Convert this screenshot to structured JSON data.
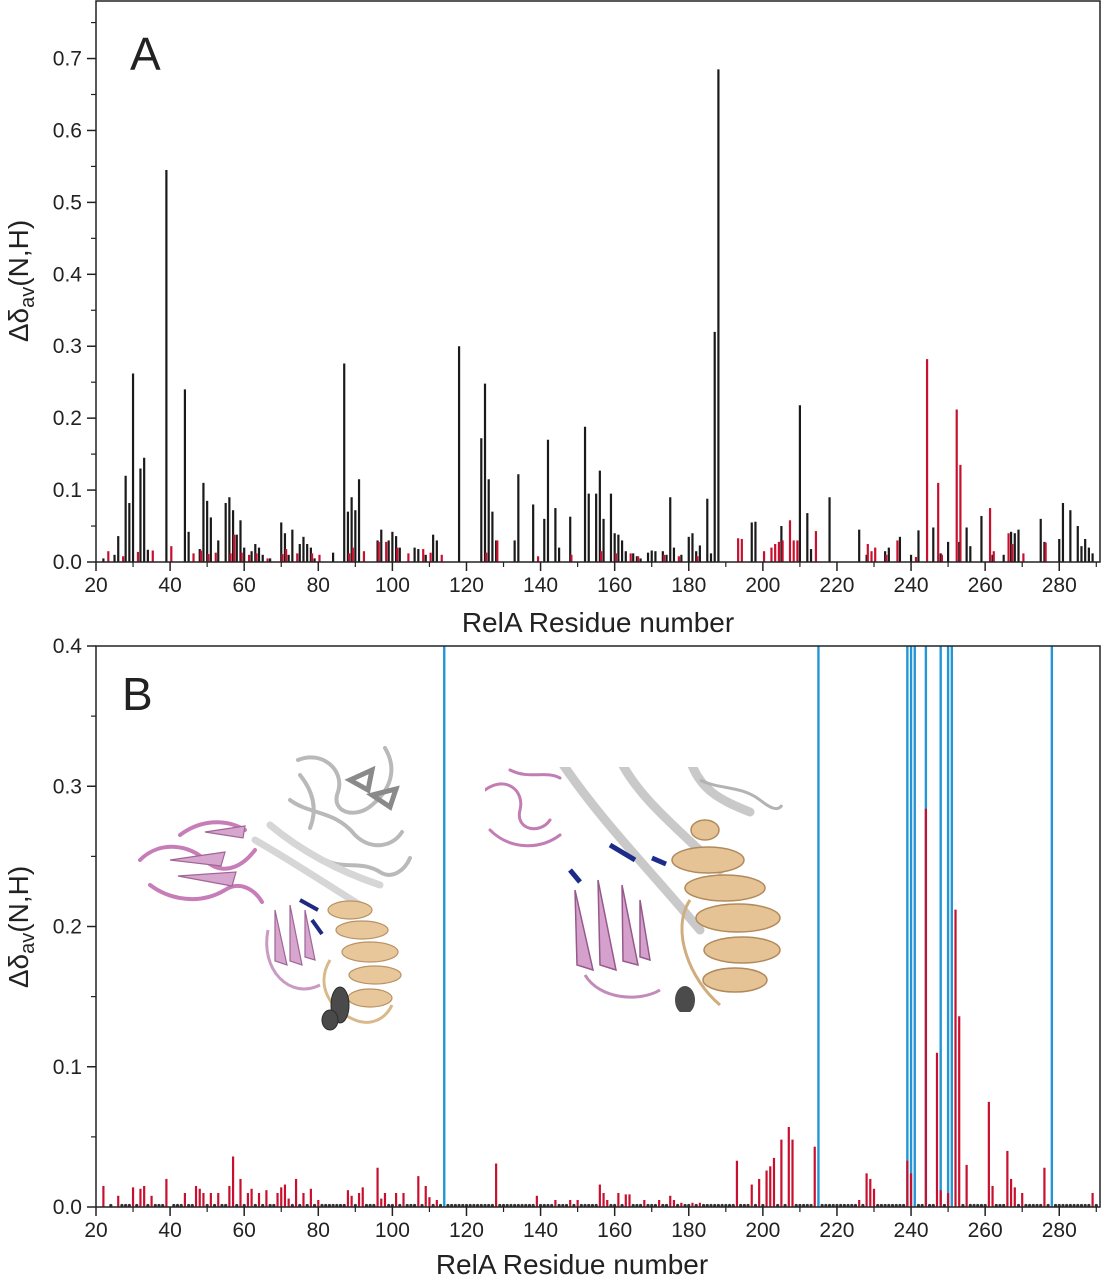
{
  "chart_data": [
    {
      "type": "bar",
      "panel_label": "A",
      "xlabel": "RelA Residue number",
      "ylabel": "Δδ_av(N,H)",
      "ylabel_parts": {
        "main": "Δδ",
        "sub": "av",
        "suffix": "(N,H)"
      },
      "xlim": [
        20,
        291
      ],
      "ylim": [
        0,
        0.78
      ],
      "xticks": [
        20,
        40,
        60,
        80,
        100,
        120,
        140,
        160,
        180,
        200,
        220,
        240,
        260,
        280
      ],
      "yticks": [
        "0.0",
        "0.1",
        "0.2",
        "0.3",
        "0.4",
        "0.5",
        "0.6",
        "0.7"
      ],
      "grid": false,
      "colors": {
        "series_1": "#1a1a1a",
        "series_2": "#c8102e"
      },
      "series": [
        {
          "color": "#1a1a1a",
          "x": [
            22,
            25,
            26,
            28,
            29,
            30,
            32,
            33,
            34,
            39,
            44,
            45,
            48,
            49,
            50,
            51,
            53,
            55,
            56,
            57,
            58,
            59,
            60,
            62,
            63,
            64,
            65,
            67,
            70,
            71,
            72,
            73,
            75,
            76,
            77,
            78,
            79,
            84,
            87,
            88,
            89,
            90,
            91,
            96,
            97,
            99,
            100,
            101,
            102,
            106,
            107,
            109,
            111,
            112,
            118,
            124,
            125,
            126,
            127,
            128,
            133,
            134,
            138,
            141,
            142,
            144,
            145,
            148,
            152,
            153,
            155,
            156,
            157,
            159,
            160,
            161,
            162,
            163,
            165,
            166,
            167,
            169,
            170,
            171,
            173,
            174,
            175,
            176,
            178,
            180,
            181,
            182,
            183,
            185,
            186,
            187,
            188,
            197,
            198,
            205,
            210,
            212,
            213,
            218,
            226,
            228,
            233,
            234,
            237,
            240,
            242,
            246,
            248,
            250,
            253,
            255,
            256,
            259,
            262,
            265,
            267,
            268,
            269,
            275,
            276,
            280,
            281,
            283,
            285,
            286,
            287,
            288,
            289
          ],
          "values": [
            0.005,
            0.01,
            0.036,
            0.12,
            0.082,
            0.262,
            0.13,
            0.145,
            0.017,
            0.545,
            0.24,
            0.042,
            0.018,
            0.11,
            0.085,
            0.062,
            0.03,
            0.082,
            0.09,
            0.072,
            0.038,
            0.058,
            0.02,
            0.015,
            0.025,
            0.02,
            0.01,
            0.005,
            0.055,
            0.04,
            0.01,
            0.045,
            0.025,
            0.035,
            0.025,
            0.02,
            0.005,
            0.013,
            0.276,
            0.07,
            0.09,
            0.072,
            0.115,
            0.03,
            0.045,
            0.03,
            0.042,
            0.036,
            0.02,
            0.02,
            0.018,
            0.01,
            0.038,
            0.03,
            0.3,
            0.172,
            0.248,
            0.115,
            0.07,
            0.03,
            0.03,
            0.122,
            0.08,
            0.06,
            0.17,
            0.075,
            0.02,
            0.063,
            0.188,
            0.095,
            0.095,
            0.127,
            0.06,
            0.095,
            0.04,
            0.038,
            0.03,
            0.015,
            0.012,
            0.008,
            0.005,
            0.013,
            0.016,
            0.015,
            0.015,
            0.01,
            0.09,
            0.02,
            0.01,
            0.035,
            0.04,
            0.015,
            0.023,
            0.088,
            0.012,
            0.32,
            0.685,
            0.055,
            0.056,
            0.05,
            0.218,
            0.068,
            0.018,
            0.09,
            0.045,
            0.01,
            0.015,
            0.02,
            0.035,
            0.01,
            0.044,
            0.048,
            0.012,
            0.028,
            0.028,
            0.048,
            0.022,
            0.064,
            0.01,
            0.01,
            0.042,
            0.04,
            0.045,
            0.06,
            0.028,
            0.032,
            0.082,
            0.072,
            0.05,
            0.022,
            0.032,
            0.02,
            0.012
          ]
        },
        {
          "color": "#c8102e",
          "x": [
            23,
            27,
            31,
            35,
            40,
            46,
            48,
            50,
            52,
            56,
            57,
            59,
            61,
            63,
            66,
            70,
            71,
            74,
            78,
            80,
            88,
            89,
            92,
            96,
            98,
            101,
            104,
            108,
            110,
            113,
            125,
            128,
            139,
            148,
            156,
            160,
            164,
            166,
            173,
            177,
            182,
            193,
            194,
            200,
            202,
            203,
            204,
            205,
            207,
            208,
            209,
            214,
            228,
            229,
            230,
            233,
            236,
            241,
            244,
            247,
            248,
            252,
            253,
            261,
            262,
            266,
            267,
            270,
            276
          ],
          "values": [
            0.015,
            0.008,
            0.014,
            0.016,
            0.022,
            0.012,
            0.016,
            0.011,
            0.013,
            0.012,
            0.038,
            0.013,
            0.01,
            0.012,
            0.005,
            0.011,
            0.018,
            0.012,
            0.012,
            0.01,
            0.012,
            0.02,
            0.015,
            0.028,
            0.028,
            0.02,
            0.012,
            0.018,
            0.013,
            0.01,
            0.013,
            0.03,
            0.008,
            0.01,
            0.015,
            0.012,
            0.012,
            0.008,
            0.01,
            0.008,
            0.008,
            0.033,
            0.032,
            0.015,
            0.02,
            0.025,
            0.028,
            0.03,
            0.058,
            0.03,
            0.03,
            0.043,
            0.025,
            0.015,
            0.02,
            0.01,
            0.03,
            0.007,
            0.282,
            0.11,
            0.01,
            0.212,
            0.135,
            0.075,
            0.015,
            0.04,
            0.025,
            0.012,
            0.027
          ]
        }
      ]
    },
    {
      "type": "bar",
      "panel_label": "B",
      "xlabel": "RelA Residue number",
      "ylabel": "Δδ_av(N,H)",
      "ylabel_parts": {
        "main": "Δδ",
        "sub": "av",
        "suffix": "(N,H)"
      },
      "xlim": [
        20,
        291
      ],
      "ylim": [
        0,
        0.4
      ],
      "xticks": [
        20,
        40,
        60,
        80,
        100,
        120,
        140,
        160,
        180,
        200,
        220,
        240,
        260,
        280
      ],
      "yticks": [
        "0.0",
        "0.1",
        "0.2",
        "0.3",
        "0.4"
      ],
      "grid": false,
      "colors": {
        "bars": "#c8102e",
        "vertical_lines": "#2596d4",
        "dots": "#333333"
      },
      "series": [
        {
          "color": "#c8102e",
          "x": [
            22,
            26,
            30,
            32,
            33,
            35,
            39,
            44,
            47,
            48,
            49,
            51,
            53,
            56,
            57,
            59,
            61,
            62,
            64,
            66,
            69,
            70,
            71,
            72,
            74,
            76,
            78,
            80,
            88,
            89,
            91,
            92,
            96,
            97,
            98,
            101,
            103,
            107,
            109,
            110,
            112,
            128,
            139,
            144,
            148,
            150,
            156,
            157,
            158,
            161,
            163,
            164,
            168,
            172,
            175,
            176,
            178,
            181,
            183,
            193,
            197,
            199,
            201,
            202,
            203,
            205,
            207,
            208,
            214,
            226,
            228,
            229,
            230,
            239,
            240,
            244,
            247,
            248,
            250,
            252,
            253,
            255,
            261,
            262,
            266,
            267,
            268,
            270,
            276,
            289
          ],
          "values": [
            0.015,
            0.008,
            0.014,
            0.013,
            0.015,
            0.008,
            0.02,
            0.01,
            0.015,
            0.013,
            0.01,
            0.01,
            0.01,
            0.015,
            0.036,
            0.02,
            0.01,
            0.013,
            0.01,
            0.012,
            0.01,
            0.014,
            0.016,
            0.006,
            0.02,
            0.01,
            0.013,
            0.005,
            0.012,
            0.008,
            0.01,
            0.014,
            0.028,
            0.006,
            0.01,
            0.01,
            0.01,
            0.022,
            0.015,
            0.007,
            0.005,
            0.031,
            0.008,
            0.005,
            0.005,
            0.005,
            0.016,
            0.01,
            0.005,
            0.01,
            0.009,
            0.009,
            0.005,
            0.005,
            0.008,
            0.005,
            0.003,
            0.003,
            0.003,
            0.033,
            0.016,
            0.02,
            0.026,
            0.029,
            0.035,
            0.048,
            0.057,
            0.048,
            0.043,
            0.005,
            0.024,
            0.02,
            0.013,
            0.033,
            0.024,
            0.284,
            0.11,
            0.012,
            0.01,
            0.212,
            0.136,
            0.03,
            0.075,
            0.015,
            0.04,
            0.02,
            0.014,
            0.01,
            0.028,
            0.01
          ]
        }
      ],
      "vertical_lines_x": [
        114,
        215,
        239,
        240,
        241,
        244,
        248,
        250,
        251,
        278
      ],
      "dot_x": [
        24,
        27,
        28,
        29,
        31,
        34,
        36,
        37,
        38,
        41,
        42,
        43,
        45,
        46,
        50,
        52,
        54,
        55,
        58,
        60,
        63,
        65,
        67,
        68,
        73,
        75,
        77,
        79,
        81,
        82,
        83,
        84,
        85,
        86,
        87,
        90,
        93,
        94,
        95,
        99,
        100,
        102,
        104,
        105,
        106,
        108,
        111,
        113,
        115,
        116,
        117,
        118,
        119,
        120,
        121,
        122,
        123,
        124,
        125,
        126,
        127,
        129,
        130,
        131,
        132,
        133,
        134,
        135,
        136,
        137,
        138,
        140,
        141,
        142,
        143,
        145,
        146,
        147,
        149,
        151,
        152,
        153,
        154,
        155,
        159,
        160,
        162,
        165,
        166,
        167,
        169,
        170,
        171,
        173,
        174,
        177,
        179,
        180,
        182,
        184,
        185,
        186,
        187,
        188,
        189,
        190,
        191,
        192,
        194,
        195,
        196,
        198,
        200,
        204,
        206,
        209,
        210,
        211,
        212,
        213,
        216,
        217,
        218,
        219,
        220,
        221,
        222,
        223,
        224,
        225,
        227,
        231,
        232,
        233,
        234,
        235,
        236,
        237,
        238,
        242,
        243,
        245,
        246,
        249,
        254,
        256,
        257,
        258,
        259,
        260,
        263,
        264,
        265,
        269,
        271,
        272,
        273,
        274,
        275,
        277,
        279,
        280,
        281,
        282,
        283,
        284,
        285,
        286,
        287,
        288,
        290
      ]
    }
  ]
}
